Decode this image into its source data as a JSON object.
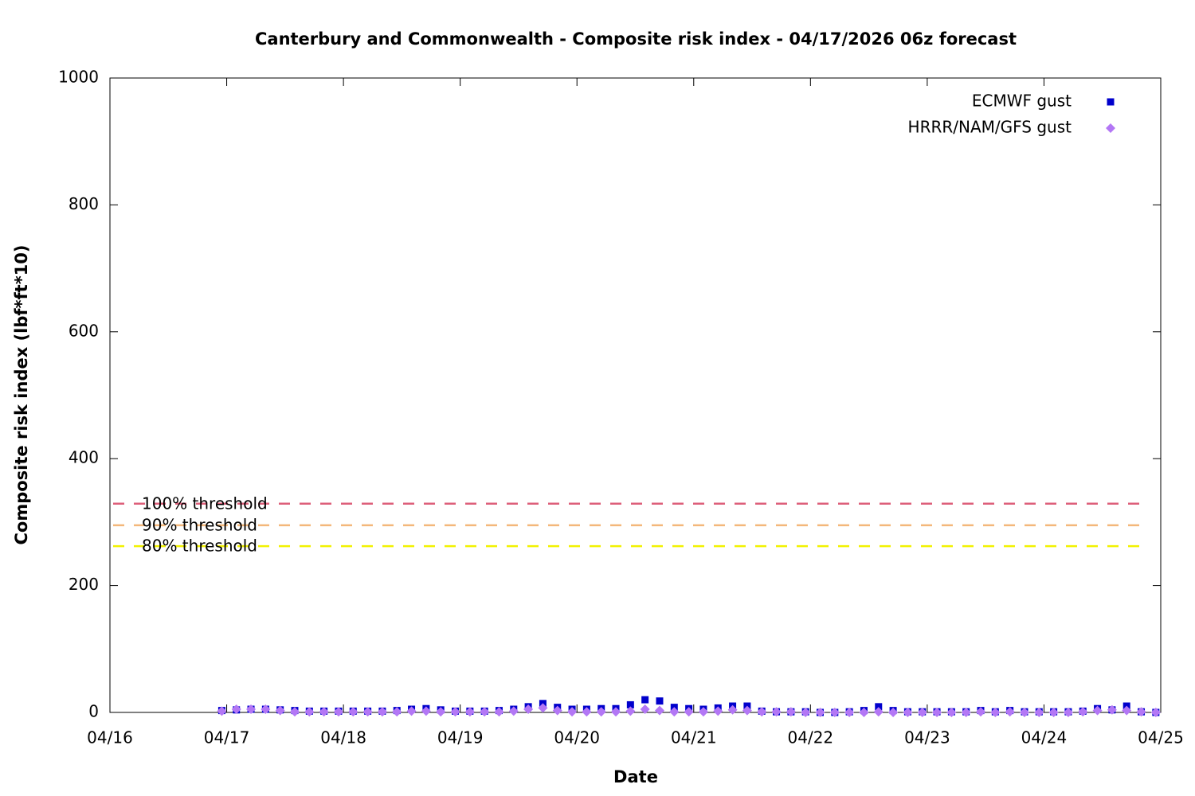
{
  "chart_data": {
    "type": "scatter",
    "title": "Canterbury and Commonwealth - Composite risk index - 04/17/2026 06z forecast",
    "xlabel": "Date",
    "ylabel": "Composite risk index (lbf*ft*10)",
    "xlim": [
      16,
      25
    ],
    "xticks": [
      {
        "value": 16,
        "label": "04/16"
      },
      {
        "value": 17,
        "label": "04/17"
      },
      {
        "value": 18,
        "label": "04/18"
      },
      {
        "value": 19,
        "label": "04/19"
      },
      {
        "value": 20,
        "label": "04/20"
      },
      {
        "value": 21,
        "label": "04/21"
      },
      {
        "value": 22,
        "label": "04/22"
      },
      {
        "value": 23,
        "label": "04/23"
      },
      {
        "value": 24,
        "label": "04/24"
      },
      {
        "value": 25,
        "label": "04/25"
      }
    ],
    "ylim": [
      0,
      1000
    ],
    "yticks": [
      0,
      200,
      400,
      600,
      800,
      1000
    ],
    "legend_position": "top-right",
    "x": [
      16.958,
      17.083,
      17.208,
      17.333,
      17.458,
      17.583,
      17.708,
      17.833,
      17.958,
      18.083,
      18.208,
      18.333,
      18.458,
      18.583,
      18.708,
      18.833,
      18.958,
      19.083,
      19.208,
      19.333,
      19.458,
      19.583,
      19.708,
      19.833,
      19.958,
      20.083,
      20.208,
      20.333,
      20.458,
      20.583,
      20.708,
      20.833,
      20.958,
      21.083,
      21.208,
      21.333,
      21.458,
      21.583,
      21.708,
      21.833,
      21.958,
      22.083,
      22.208,
      22.333,
      22.458,
      22.583,
      22.708,
      22.833,
      22.958,
      23.083,
      23.208,
      23.333,
      23.458,
      23.583,
      23.708,
      23.833,
      23.958,
      24.083,
      24.208,
      24.333,
      24.458,
      24.583,
      24.708,
      24.833,
      24.958
    ],
    "series": [
      {
        "name": "ECMWF gust",
        "color": "#0000cc",
        "marker": "square",
        "values": [
          3,
          4,
          5,
          5,
          4,
          3,
          2,
          2,
          2,
          2,
          2,
          2,
          3,
          5,
          6,
          4,
          2,
          2,
          2,
          3,
          5,
          9,
          14,
          8,
          5,
          5,
          6,
          6,
          12,
          20,
          18,
          8,
          6,
          5,
          7,
          10,
          10,
          2,
          1,
          1,
          1,
          0,
          0,
          1,
          3,
          9,
          3,
          1,
          1,
          1,
          1,
          1,
          3,
          1,
          3,
          1,
          1,
          1,
          1,
          2,
          6,
          4,
          10,
          1,
          0
        ]
      },
      {
        "name": "HRRR/NAM/GFS gust",
        "color": "#b377f5",
        "marker": "diamond",
        "values": [
          2,
          5,
          5,
          5,
          3,
          1,
          1,
          1,
          1,
          1,
          1,
          1,
          1,
          2,
          2,
          1,
          1,
          1,
          1,
          1,
          2,
          5,
          7,
          3,
          1,
          1,
          1,
          1,
          2,
          5,
          3,
          1,
          1,
          1,
          2,
          4,
          3,
          1,
          1,
          1,
          0,
          0,
          0,
          0,
          0,
          1,
          0,
          0,
          0,
          0,
          0,
          0,
          1,
          0,
          1,
          0,
          0,
          0,
          0,
          1,
          3,
          4,
          3,
          1,
          0
        ]
      }
    ],
    "thresholds": [
      {
        "label": "100% threshold",
        "value": 329,
        "color": "#dd5f7a"
      },
      {
        "label": "90% threshold",
        "value": 295,
        "color": "#f4b77a"
      },
      {
        "label": "80% threshold",
        "value": 262,
        "color": "#f2f200"
      }
    ]
  }
}
